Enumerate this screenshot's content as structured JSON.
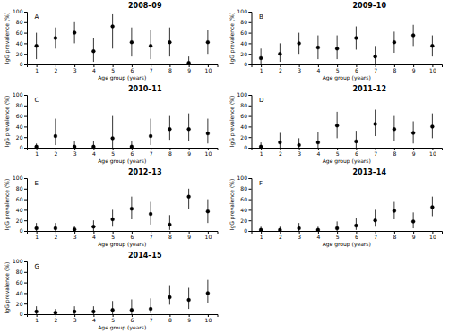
{
  "chart_data": [
    {
      "type": "scatter",
      "title": "2008–09",
      "annotations": [
        "A"
      ],
      "xlabel": "Age group (years)",
      "ylabel": "IgG prevalence (%)",
      "x": [
        1,
        2,
        3,
        4,
        5,
        6,
        7,
        8,
        9,
        10
      ],
      "values": [
        35,
        50,
        60,
        25,
        72,
        42,
        35,
        42,
        3,
        42
      ],
      "lo": [
        10,
        30,
        40,
        5,
        30,
        15,
        10,
        15,
        0,
        20
      ],
      "hi": [
        60,
        70,
        80,
        50,
        95,
        70,
        65,
        70,
        15,
        65
      ],
      "color": "black",
      "xlim": [
        0.5,
        10.5
      ],
      "xticks": [
        1,
        2,
        3,
        4,
        5,
        6,
        7,
        8,
        9,
        10
      ],
      "ylim": [
        0,
        100
      ],
      "yticks": [
        0,
        20,
        40,
        60,
        80,
        100
      ]
    },
    {
      "type": "scatter",
      "title": "2009–10",
      "annotations": [
        "B"
      ],
      "xlabel": "Age group (years)",
      "ylabel": "IgG prevalence (%)",
      "x": [
        1,
        2,
        3,
        4,
        5,
        6,
        7,
        8,
        9,
        10
      ],
      "values": [
        12,
        20,
        40,
        32,
        30,
        50,
        15,
        42,
        55,
        35
      ],
      "lo": [
        0,
        5,
        20,
        10,
        10,
        28,
        0,
        22,
        35,
        15
      ],
      "hi": [
        30,
        40,
        60,
        55,
        55,
        72,
        35,
        62,
        75,
        55
      ],
      "color": "black",
      "xlim": [
        0.5,
        10.5
      ],
      "xticks": [
        1,
        2,
        3,
        4,
        5,
        6,
        7,
        8,
        9,
        10
      ],
      "ylim": [
        0,
        100
      ],
      "yticks": [
        0,
        20,
        40,
        60,
        80,
        100
      ]
    },
    {
      "type": "scatter",
      "title": "2010–11",
      "annotations": [
        "C"
      ],
      "xlabel": "Age group (years)",
      "ylabel": "IgG prevalence (%)",
      "x": [
        1,
        2,
        3,
        4,
        5,
        6,
        7,
        8,
        9,
        10
      ],
      "values": [
        2,
        22,
        2,
        2,
        18,
        2,
        22,
        35,
        35,
        27
      ],
      "lo": [
        0,
        5,
        0,
        0,
        0,
        0,
        5,
        15,
        12,
        8
      ],
      "hi": [
        8,
        55,
        12,
        12,
        60,
        12,
        55,
        60,
        65,
        55
      ],
      "color": "black",
      "xlim": [
        0.5,
        10.5
      ],
      "xticks": [
        1,
        2,
        3,
        4,
        5,
        6,
        7,
        8,
        9,
        10
      ],
      "ylim": [
        0,
        100
      ],
      "yticks": [
        0,
        20,
        40,
        60,
        80,
        100
      ]
    },
    {
      "type": "scatter",
      "title": "2011–12",
      "annotations": [
        "D"
      ],
      "xlabel": "Age group (years)",
      "ylabel": "IgG prevalence (%)",
      "x": [
        1,
        2,
        3,
        4,
        5,
        6,
        7,
        8,
        9,
        10
      ],
      "values": [
        2,
        10,
        5,
        10,
        42,
        12,
        45,
        35,
        28,
        40
      ],
      "lo": [
        0,
        0,
        0,
        0,
        18,
        0,
        22,
        12,
        8,
        18
      ],
      "hi": [
        10,
        28,
        18,
        30,
        68,
        32,
        72,
        60,
        50,
        65
      ],
      "color": "black",
      "xlim": [
        0.5,
        10.5
      ],
      "xticks": [
        1,
        2,
        3,
        4,
        5,
        6,
        7,
        8,
        9,
        10
      ],
      "ylim": [
        0,
        100
      ],
      "yticks": [
        0,
        20,
        40,
        60,
        80,
        100
      ]
    },
    {
      "type": "scatter",
      "title": "2012–13",
      "annotations": [
        "E"
      ],
      "xlabel": "Age group (years)",
      "ylabel": "IgG prevalence (%)",
      "x": [
        1,
        2,
        3,
        4,
        5,
        6,
        7,
        8,
        9,
        10
      ],
      "values": [
        5,
        5,
        3,
        8,
        22,
        42,
        32,
        12,
        65,
        37
      ],
      "lo": [
        0,
        0,
        0,
        0,
        8,
        22,
        12,
        2,
        42,
        15
      ],
      "hi": [
        15,
        15,
        10,
        20,
        40,
        65,
        55,
        30,
        80,
        60
      ],
      "color": "black",
      "xlim": [
        0.5,
        10.5
      ],
      "xticks": [
        1,
        2,
        3,
        4,
        5,
        6,
        7,
        8,
        9,
        10
      ],
      "ylim": [
        0,
        100
      ],
      "yticks": [
        0,
        20,
        40,
        60,
        80,
        100
      ]
    },
    {
      "type": "scatter",
      "title": "2013–14",
      "annotations": [
        "F"
      ],
      "xlabel": "Age group (years)",
      "ylabel": "IgG prevalence (%)",
      "x": [
        1,
        2,
        3,
        4,
        5,
        6,
        7,
        8,
        9,
        10
      ],
      "values": [
        2,
        2,
        5,
        2,
        5,
        10,
        20,
        38,
        18,
        45
      ],
      "lo": [
        0,
        0,
        0,
        0,
        0,
        2,
        8,
        22,
        5,
        28
      ],
      "hi": [
        8,
        8,
        15,
        8,
        18,
        25,
        40,
        55,
        35,
        65
      ],
      "color": "black",
      "xlim": [
        0.5,
        10.5
      ],
      "xticks": [
        1,
        2,
        3,
        4,
        5,
        6,
        7,
        8,
        9,
        10
      ],
      "ylim": [
        0,
        100
      ],
      "yticks": [
        0,
        20,
        40,
        60,
        80,
        100
      ]
    },
    {
      "type": "scatter",
      "title": "2014–15",
      "annotations": [
        "G"
      ],
      "xlabel": "Age group (years)",
      "ylabel": "IgG prevalence (%)",
      "x": [
        1,
        2,
        3,
        4,
        5,
        6,
        7,
        8,
        9,
        10
      ],
      "values": [
        5,
        3,
        5,
        5,
        8,
        8,
        10,
        32,
        27,
        40
      ],
      "lo": [
        0,
        0,
        0,
        0,
        0,
        0,
        2,
        18,
        10,
        22
      ],
      "hi": [
        15,
        10,
        15,
        15,
        25,
        28,
        30,
        55,
        50,
        65
      ],
      "color": "black",
      "xlim": [
        0.5,
        10.5
      ],
      "xticks": [
        1,
        2,
        3,
        4,
        5,
        6,
        7,
        8,
        9,
        10
      ],
      "ylim": [
        0,
        100
      ],
      "yticks": [
        0,
        20,
        40,
        60,
        80,
        100
      ]
    }
  ]
}
